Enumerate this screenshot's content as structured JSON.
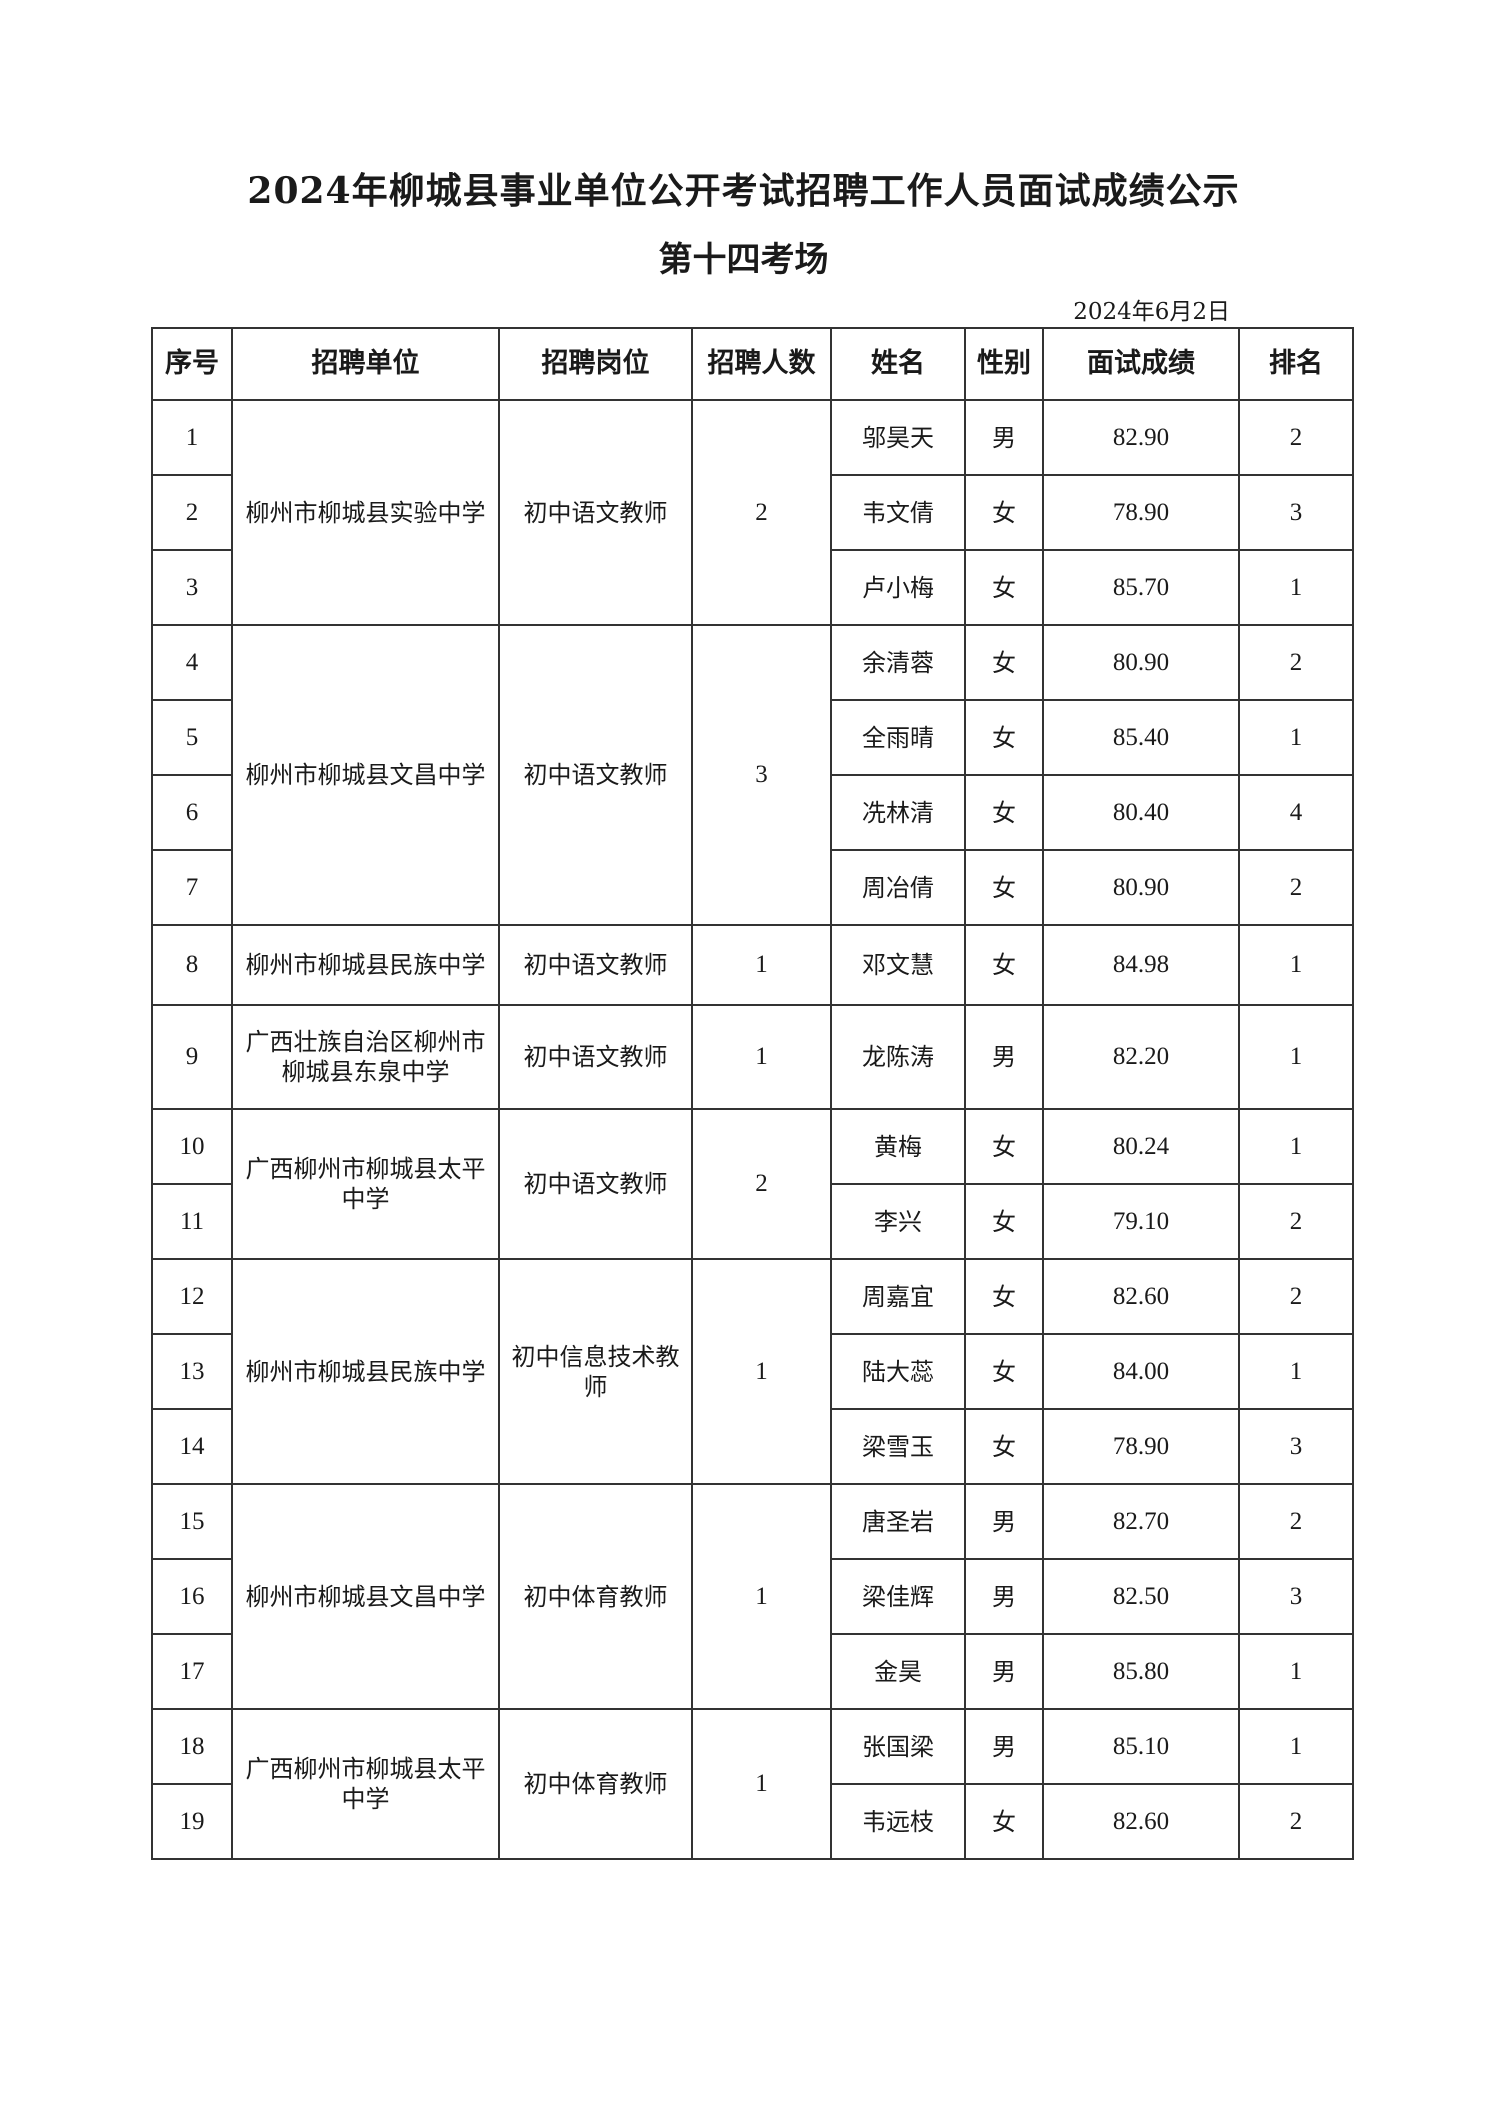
{
  "title": "2024年柳城县事业单位公开考试招聘工作人员面试成绩公示",
  "subtitle": "第十四考场",
  "date": "2024年6月2日",
  "headers": [
    "序号",
    "招聘单位",
    "招聘岗位",
    "招聘人数",
    "姓名",
    "性别",
    "面试成绩",
    "排名"
  ],
  "groups": [
    {
      "unit": "柳州市柳城县实验中学",
      "post": "初中语文教师",
      "count": "2",
      "rows": [
        {
          "no": "1",
          "name": "邬昊天",
          "gender": "男",
          "score": "82.90",
          "rank": "2"
        },
        {
          "no": "2",
          "name": "韦文倩",
          "gender": "女",
          "score": "78.90",
          "rank": "3"
        },
        {
          "no": "3",
          "name": "卢小梅",
          "gender": "女",
          "score": "85.70",
          "rank": "1"
        }
      ]
    },
    {
      "unit": "柳州市柳城县文昌中学",
      "post": "初中语文教师",
      "count": "3",
      "rows": [
        {
          "no": "4",
          "name": "余清蓉",
          "gender": "女",
          "score": "80.90",
          "rank": "2"
        },
        {
          "no": "5",
          "name": "全雨晴",
          "gender": "女",
          "score": "85.40",
          "rank": "1"
        },
        {
          "no": "6",
          "name": "冼林清",
          "gender": "女",
          "score": "80.40",
          "rank": "4"
        },
        {
          "no": "7",
          "name": "周冶倩",
          "gender": "女",
          "score": "80.90",
          "rank": "2"
        }
      ]
    },
    {
      "unit": "柳州市柳城县民族中学",
      "post": "初中语文教师",
      "count": "1",
      "rows": [
        {
          "no": "8",
          "name": "邓文慧",
          "gender": "女",
          "score": "84.98",
          "rank": "1"
        }
      ]
    },
    {
      "unit": "广西壮族自治区柳州市柳城县东泉中学",
      "post": "初中语文教师",
      "count": "1",
      "rows": [
        {
          "no": "9",
          "name": "龙陈涛",
          "gender": "男",
          "score": "82.20",
          "rank": "1"
        }
      ]
    },
    {
      "unit": "广西柳州市柳城县太平中学",
      "post": "初中语文教师",
      "count": "2",
      "rows": [
        {
          "no": "10",
          "name": "黄梅",
          "gender": "女",
          "score": "80.24",
          "rank": "1"
        },
        {
          "no": "11",
          "name": "李兴",
          "gender": "女",
          "score": "79.10",
          "rank": "2"
        }
      ]
    },
    {
      "unit": "柳州市柳城县民族中学",
      "post": "初中信息技术教师",
      "count": "1",
      "rows": [
        {
          "no": "12",
          "name": "周嘉宜",
          "gender": "女",
          "score": "82.60",
          "rank": "2"
        },
        {
          "no": "13",
          "name": "陆大蕊",
          "gender": "女",
          "score": "84.00",
          "rank": "1"
        },
        {
          "no": "14",
          "name": "梁雪玉",
          "gender": "女",
          "score": "78.90",
          "rank": "3"
        }
      ]
    },
    {
      "unit": "柳州市柳城县文昌中学",
      "post": "初中体育教师",
      "count": "1",
      "rows": [
        {
          "no": "15",
          "name": "唐圣岩",
          "gender": "男",
          "score": "82.70",
          "rank": "2"
        },
        {
          "no": "16",
          "name": "梁佳辉",
          "gender": "男",
          "score": "82.50",
          "rank": "3"
        },
        {
          "no": "17",
          "name": "金昊",
          "gender": "男",
          "score": "85.80",
          "rank": "1"
        }
      ]
    },
    {
      "unit": "广西柳州市柳城县太平中学",
      "post": "初中体育教师",
      "count": "1",
      "rows": [
        {
          "no": "18",
          "name": "张国梁",
          "gender": "男",
          "score": "85.10",
          "rank": "1"
        },
        {
          "no": "19",
          "name": "韦远枝",
          "gender": "女",
          "score": "82.60",
          "rank": "2"
        }
      ]
    }
  ]
}
